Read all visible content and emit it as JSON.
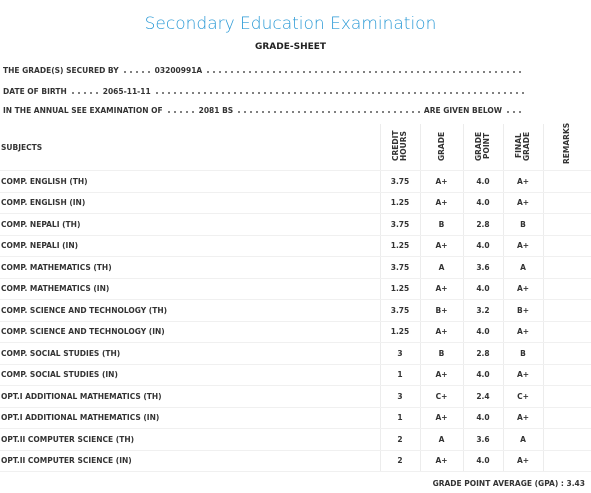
{
  "header": {
    "title": "Secondary Education Examination",
    "subtitle": "GRADE-SHEET"
  },
  "info": [
    {
      "label": "THE GRADE(S) SECURED BY",
      "value": "03200991A"
    },
    {
      "label": "DATE OF BIRTH",
      "value": "2065-11-11"
    },
    {
      "label": "IN THE ANNUAL SEE EXAMINATION OF",
      "value": "2081 BS",
      "suffix": "ARE GIVEN BELOW"
    }
  ],
  "table": {
    "columns": [
      "SUBJECTS",
      "CREDIT HOURS",
      "GRADE",
      "GRADE POINT",
      "FINAL GRADE",
      "REMARKS"
    ],
    "rows": [
      [
        "COMP. ENGLISH (TH)",
        "3.75",
        "A+",
        "4.0",
        "A+"
      ],
      [
        "COMP. ENGLISH (IN)",
        "1.25",
        "A+",
        "4.0",
        "A+"
      ],
      [
        "COMP. NEPALI (TH)",
        "3.75",
        "B",
        "2.8",
        "B"
      ],
      [
        "COMP. NEPALI (IN)",
        "1.25",
        "A+",
        "4.0",
        "A+"
      ],
      [
        "COMP. MATHEMATICS (TH)",
        "3.75",
        "A",
        "3.6",
        "A"
      ],
      [
        "COMP. MATHEMATICS (IN)",
        "1.25",
        "A+",
        "4.0",
        "A+"
      ],
      [
        "COMP. SCIENCE AND TECHNOLOGY (TH)",
        "3.75",
        "B+",
        "3.2",
        "B+"
      ],
      [
        "COMP. SCIENCE AND TECHNOLOGY (IN)",
        "1.25",
        "A+",
        "4.0",
        "A+"
      ],
      [
        "COMP. SOCIAL STUDIES (TH)",
        "3",
        "B",
        "2.8",
        "B"
      ],
      [
        "COMP. SOCIAL STUDIES (IN)",
        "1",
        "A+",
        "4.0",
        "A+"
      ],
      [
        "OPT.I ADDITIONAL MATHEMATICS (TH)",
        "3",
        "C+",
        "2.4",
        "C+"
      ],
      [
        "OPT.I ADDITIONAL MATHEMATICS (IN)",
        "1",
        "A+",
        "4.0",
        "A+"
      ],
      [
        "OPT.II COMPUTER SCIENCE (TH)",
        "2",
        "A",
        "3.6",
        "A"
      ],
      [
        "OPT.II COMPUTER SCIENCE (IN)",
        "2",
        "A+",
        "4.0",
        "A+"
      ]
    ]
  },
  "gpa": {
    "label": "GRADE POINT AVERAGE (GPA) :",
    "value": "3.43"
  }
}
